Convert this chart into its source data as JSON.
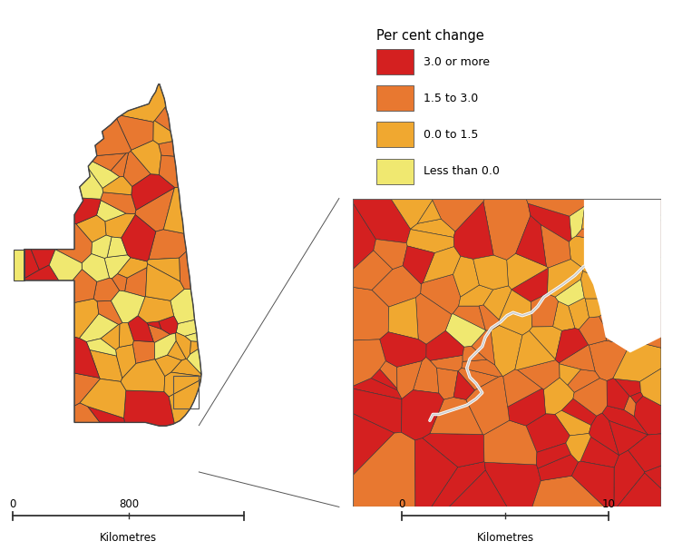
{
  "legend_title": "Per cent change",
  "legend_items": [
    {
      "label": "3.0 or more",
      "color": "#D42020"
    },
    {
      "label": "1.5 to 3.0",
      "color": "#E87830"
    },
    {
      "label": "0.0 to 1.5",
      "color": "#F0A830"
    },
    {
      "label": "Less than 0.0",
      "color": "#F0E870"
    }
  ],
  "background_color": "#FFFFFF",
  "border_color": "#333333",
  "inset_border_color": "#555555",
  "connector_color": "#555555",
  "river_color": "#E0E0E0",
  "scalebar_color": "#333333"
}
